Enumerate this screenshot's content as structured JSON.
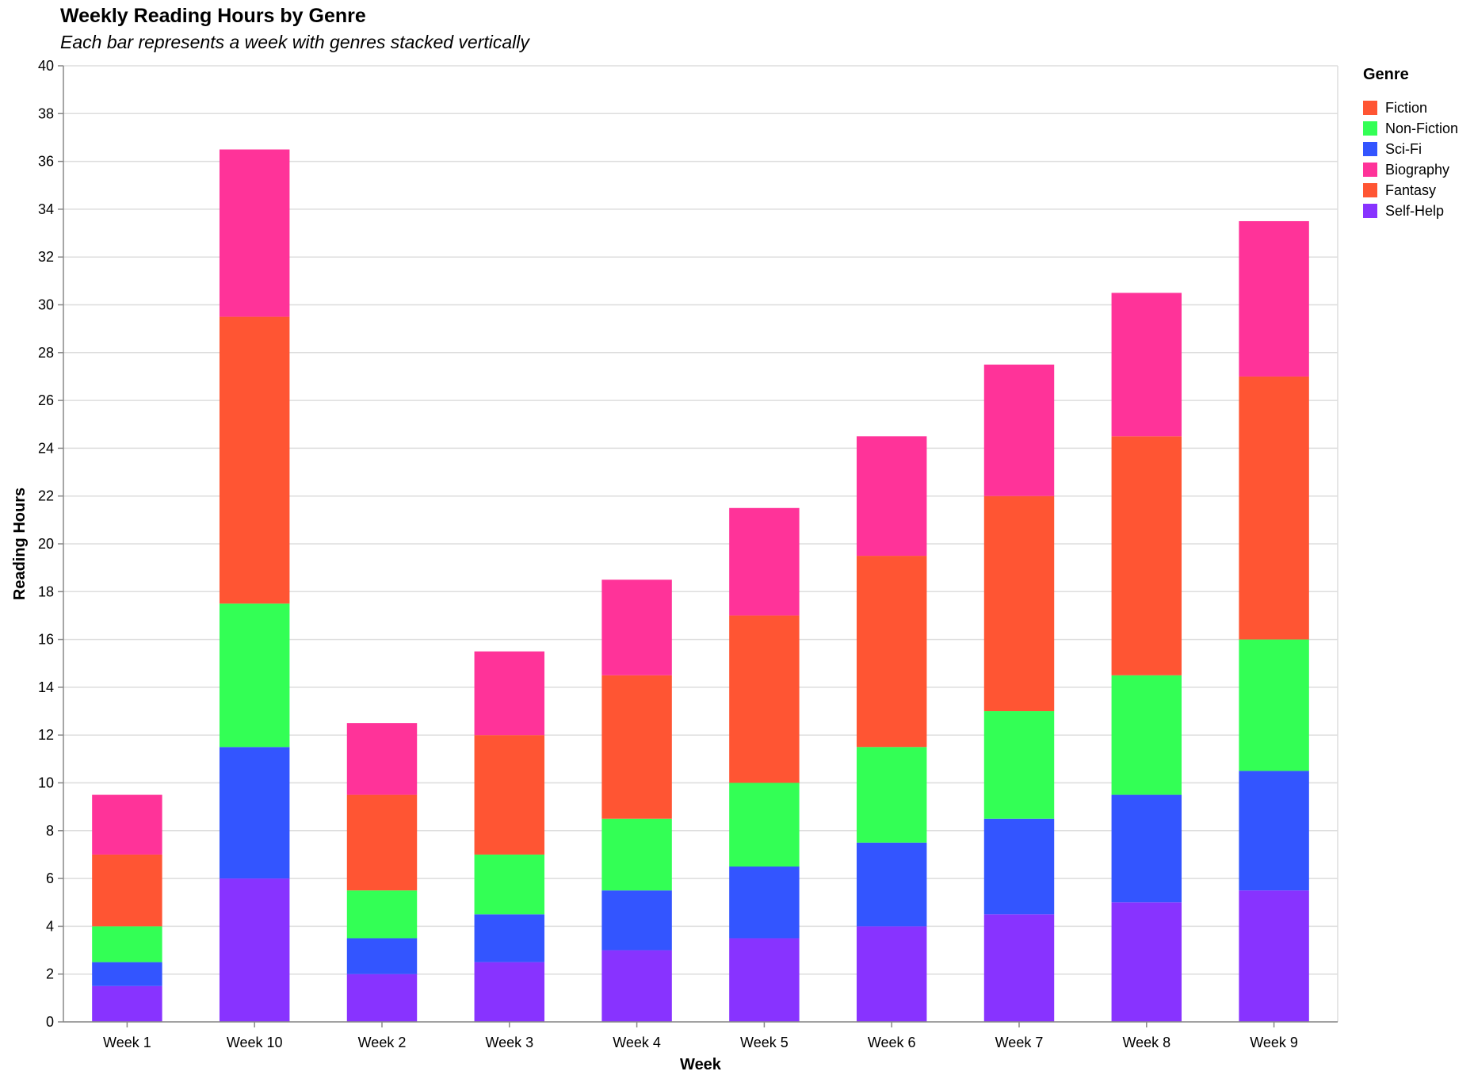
{
  "chart_data": {
    "type": "bar",
    "stacked": true,
    "title": "Weekly Reading Hours by Genre",
    "subtitle": "Each bar represents a week with genres stacked vertically",
    "xlabel": "Week",
    "ylabel": "Reading Hours",
    "ylim": [
      0,
      40
    ],
    "ytick_step": 2,
    "grid": true,
    "legend": {
      "title": "Genre",
      "position": "right"
    },
    "categories": [
      "Week 1",
      "Week 10",
      "Week 2",
      "Week 3",
      "Week 4",
      "Week 5",
      "Week 6",
      "Week 7",
      "Week 8",
      "Week 9"
    ],
    "series": [
      {
        "name": "Self-Help",
        "color": "#8833FF",
        "values": [
          1.5,
          6,
          2,
          2.5,
          3,
          3.5,
          4,
          4.5,
          5,
          5.5
        ]
      },
      {
        "name": "Sci-Fi",
        "color": "#3355FF",
        "values": [
          1,
          5.5,
          1.5,
          2,
          2.5,
          3,
          3.5,
          4,
          4.5,
          5
        ]
      },
      {
        "name": "Non-Fiction",
        "color": "#33FF55",
        "values": [
          1.5,
          6,
          2,
          2.5,
          3,
          3.5,
          4,
          4.5,
          5,
          5.5
        ]
      },
      {
        "name": "Fantasy",
        "color": "#FF5533",
        "values": [
          3,
          12,
          4,
          5,
          6,
          7,
          8,
          9,
          10,
          11
        ]
      },
      {
        "name": "Biography",
        "color": "#FF3399",
        "values": [
          2.5,
          7,
          3,
          3.5,
          4,
          4.5,
          5,
          5.5,
          6,
          6.5
        ]
      },
      {
        "name": "Fiction",
        "color": "#FF5533",
        "values": [
          0,
          0,
          0,
          0,
          0,
          0,
          0,
          0,
          0,
          0
        ]
      }
    ],
    "legend_order": [
      "Fiction",
      "Non-Fiction",
      "Sci-Fi",
      "Biography",
      "Fantasy",
      "Self-Help"
    ]
  }
}
